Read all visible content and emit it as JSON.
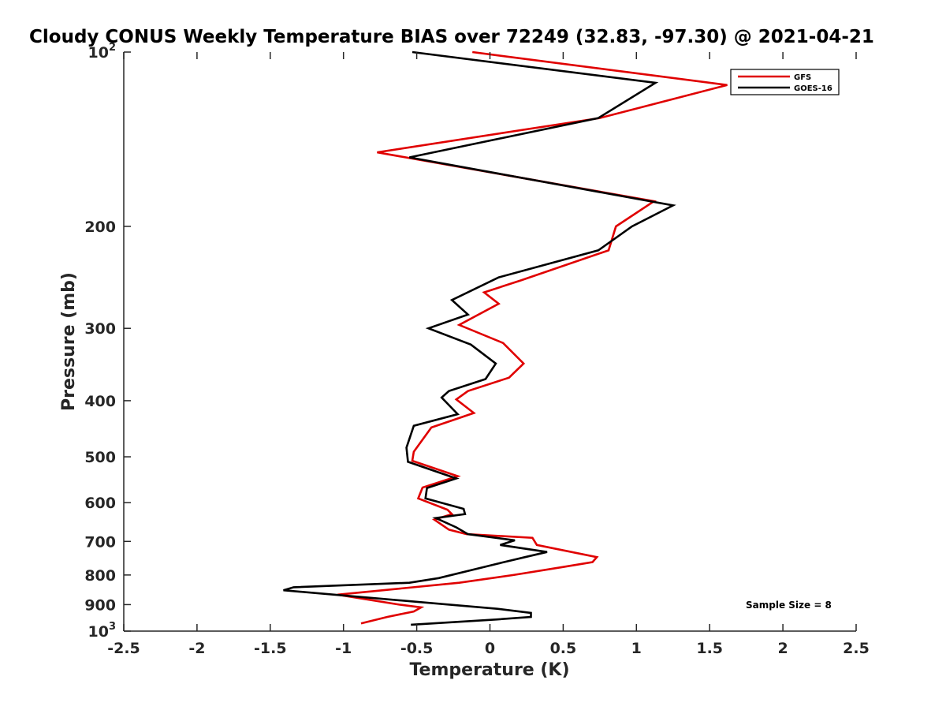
{
  "chart_data": {
    "type": "line",
    "title": "Cloudy CONUS Weekly Temperature BIAS over 72249 (32.83, -97.30) @ 2021-04-21",
    "xlabel": "Temperature (K)",
    "ylabel": "Pressure (mb)",
    "xlim": [
      -2.5,
      2.5
    ],
    "ylim": [
      100,
      1000
    ],
    "y_scale": "log",
    "y_reversed": true,
    "x_ticks": [
      -2.5,
      -2,
      -1.5,
      -1,
      -0.5,
      0,
      0.5,
      1,
      1.5,
      2,
      2.5
    ],
    "x_tick_labels": [
      "-2.5",
      "-2",
      "-1.5",
      "-1",
      "-0.5",
      "0",
      "0.5",
      "1",
      "1.5",
      "2",
      "2.5"
    ],
    "y_ticks": [
      100,
      200,
      300,
      400,
      500,
      600,
      700,
      800,
      900,
      1000
    ],
    "y_tick_labels": [
      {
        "base": "10",
        "exp": "2"
      },
      {
        "base": "200",
        "exp": ""
      },
      {
        "base": "300",
        "exp": ""
      },
      {
        "base": "400",
        "exp": ""
      },
      {
        "base": "500",
        "exp": ""
      },
      {
        "base": "600",
        "exp": ""
      },
      {
        "base": "700",
        "exp": ""
      },
      {
        "base": "800",
        "exp": ""
      },
      {
        "base": "900",
        "exp": ""
      },
      {
        "base": "10",
        "exp": "3"
      }
    ],
    "grid": false,
    "legend_position": "top-right",
    "annotation": "Sample Size = 8",
    "series": [
      {
        "name": "GFS",
        "color": "#e00000",
        "x": [
          -0.12,
          1.62,
          0.75,
          -0.77,
          1.12,
          0.86,
          0.81,
          0.21,
          -0.04,
          0.06,
          -0.21,
          0.09,
          0.23,
          0.13,
          -0.15,
          -0.23,
          -0.11,
          -0.4,
          -0.52,
          -0.53,
          -0.22,
          -0.46,
          -0.49,
          -0.29,
          -0.26,
          -0.38,
          -0.28,
          -0.16,
          0.29,
          0.32,
          0.73,
          0.7,
          0.5,
          0.16,
          -0.21,
          -1.04,
          -0.62,
          -0.47,
          -0.52,
          -0.7,
          -0.88
        ],
        "y": [
          100,
          114,
          130,
          149,
          181,
          200,
          220,
          248,
          260,
          272,
          296,
          318,
          345,
          365,
          385,
          398,
          420,
          445,
          490,
          508,
          540,
          565,
          590,
          617,
          628,
          642,
          668,
          680,
          690,
          710,
          745,
          760,
          775,
          800,
          825,
          865,
          900,
          910,
          925,
          945,
          970
        ]
      },
      {
        "name": "GOES-16",
        "color": "#000000",
        "x": [
          -0.53,
          1.13,
          0.74,
          -0.55,
          1.25,
          0.97,
          0.74,
          0.06,
          -0.26,
          -0.15,
          -0.42,
          -0.13,
          0.04,
          -0.03,
          -0.28,
          -0.33,
          -0.22,
          -0.52,
          -0.57,
          -0.56,
          -0.23,
          -0.43,
          -0.44,
          -0.18,
          -0.17,
          -0.37,
          -0.23,
          -0.15,
          0.17,
          0.07,
          0.39,
          0.24,
          0.05,
          -0.35,
          -0.55,
          -1.34,
          -1.41,
          0.05,
          0.28,
          0.28,
          0.04,
          -0.54
        ],
        "y": [
          100,
          113,
          130,
          152,
          184,
          200,
          220,
          245,
          268,
          284,
          300,
          320,
          345,
          367,
          385,
          395,
          422,
          442,
          482,
          510,
          545,
          566,
          590,
          615,
          628,
          638,
          662,
          680,
          697,
          710,
          730,
          745,
          765,
          810,
          825,
          840,
          850,
          915,
          930,
          945,
          955,
          975
        ]
      }
    ]
  }
}
